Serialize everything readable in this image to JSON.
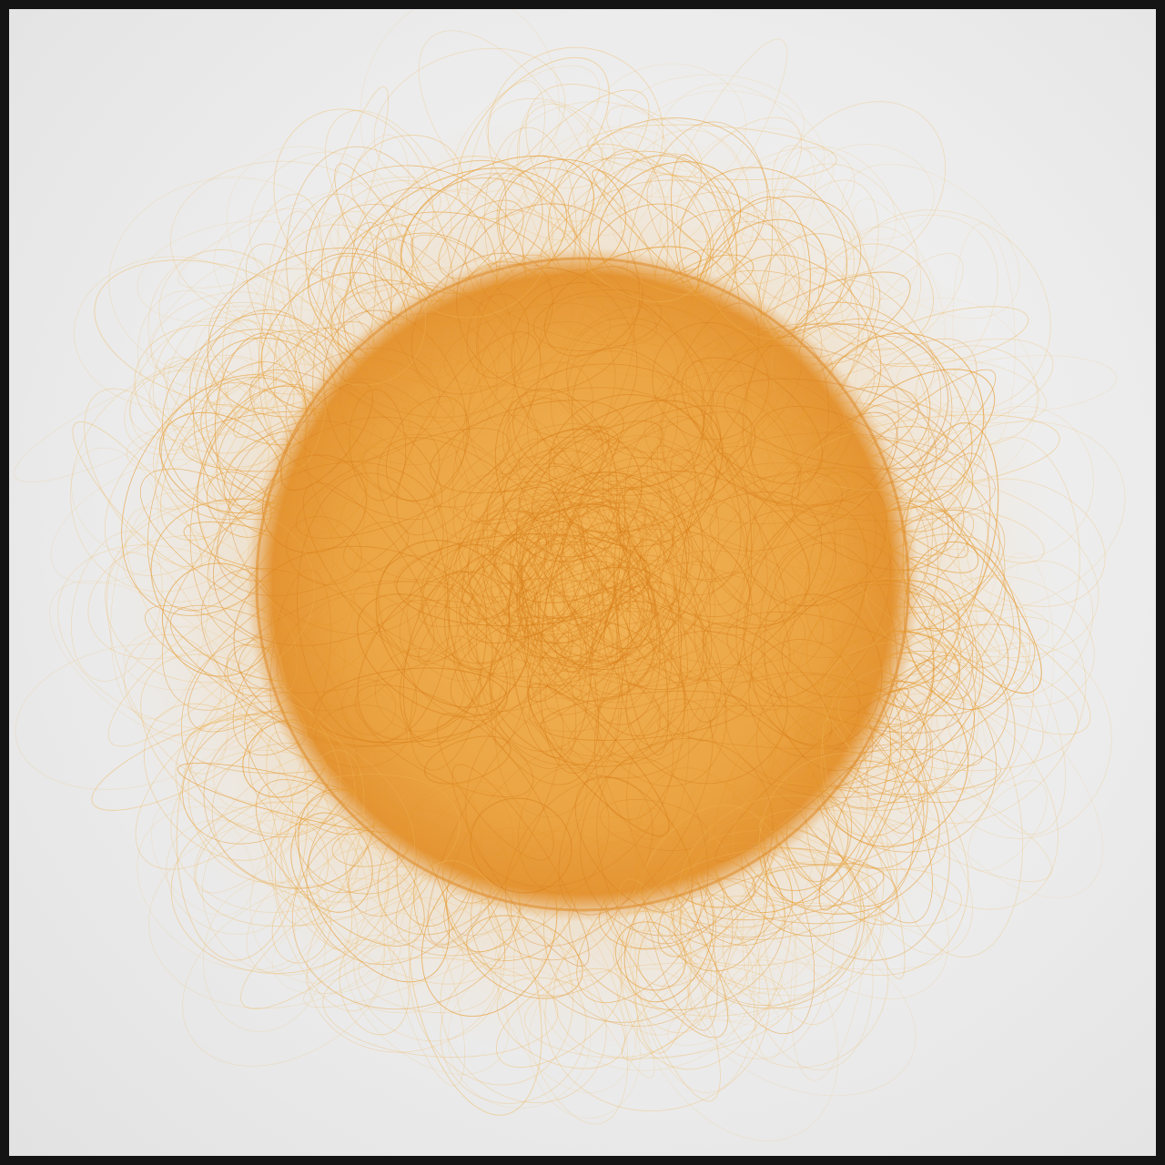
{
  "artwork": {
    "subject": "scribbled-sun",
    "colors": {
      "paper": "#ececec",
      "ink_core": "#e69a2e",
      "ink_light": "#f0b85a",
      "ink_dark": "#d97f1a",
      "frame": "#141414"
    }
  }
}
